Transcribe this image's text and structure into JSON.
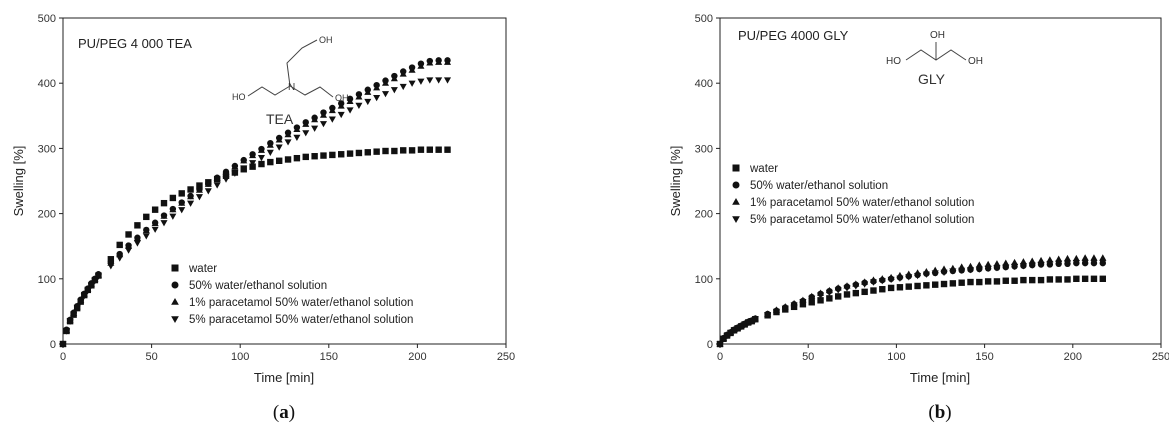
{
  "chart_data": [
    {
      "type": "scatter",
      "title": "PU/PEG 4 000 TEA",
      "caption": "(a)",
      "caption_letter": "a",
      "molecule_label": "TEA",
      "molecule_atoms": [
        "OH",
        "HO",
        "N",
        "OH"
      ],
      "xlabel": "Time [min]",
      "ylabel": "Swelling [%]",
      "xlim": [
        0,
        250
      ],
      "ylim": [
        0,
        500
      ],
      "xticks": [
        "0",
        "50",
        "100",
        "150",
        "200",
        "250"
      ],
      "yticks": [
        "0",
        "100",
        "200",
        "300",
        "400",
        "500"
      ],
      "legend_position": "bottom-center",
      "legend": [
        "water",
        "50% water/ethanol solution",
        "1% paracetamol 50% water/ethanol solution",
        "5% paracetamol 50% water/ethanol solution"
      ],
      "series": [
        {
          "name": "water",
          "marker": "square",
          "x": [
            0,
            2,
            4,
            6,
            8,
            10,
            12,
            14,
            16,
            18,
            20,
            27,
            32,
            37,
            42,
            47,
            52,
            57,
            62,
            67,
            72,
            77,
            82,
            87,
            92,
            97,
            102,
            107,
            112,
            117,
            122,
            127,
            132,
            137,
            142,
            147,
            152,
            157,
            162,
            167,
            172,
            177,
            182,
            187,
            192,
            197,
            202,
            207,
            212,
            217
          ],
          "y": [
            0,
            20,
            35,
            45,
            55,
            65,
            75,
            83,
            90,
            98,
            105,
            130,
            152,
            168,
            182,
            195,
            206,
            216,
            224,
            231,
            237,
            243,
            248,
            253,
            258,
            263,
            268,
            272,
            276,
            279,
            281,
            283,
            285,
            287,
            288,
            289,
            290,
            291,
            292,
            293,
            294,
            295,
            296,
            296,
            297,
            297,
            298,
            298,
            298,
            298
          ]
        },
        {
          "name": "50% water/ethanol solution",
          "marker": "circle",
          "x": [
            0,
            2,
            4,
            6,
            8,
            10,
            12,
            14,
            16,
            18,
            20,
            27,
            32,
            37,
            42,
            47,
            52,
            57,
            62,
            67,
            72,
            77,
            82,
            87,
            92,
            97,
            102,
            107,
            112,
            117,
            122,
            127,
            132,
            137,
            142,
            147,
            152,
            157,
            162,
            167,
            172,
            177,
            182,
            187,
            192,
            197,
            202,
            207,
            212,
            217
          ],
          "y": [
            0,
            22,
            37,
            48,
            58,
            68,
            77,
            85,
            93,
            100,
            107,
            125,
            138,
            151,
            163,
            175,
            186,
            197,
            207,
            217,
            227,
            237,
            246,
            255,
            264,
            273,
            282,
            291,
            299,
            308,
            316,
            324,
            332,
            340,
            347,
            355,
            362,
            369,
            376,
            383,
            390,
            397,
            404,
            411,
            418,
            424,
            430,
            434,
            435,
            435
          ]
        },
        {
          "name": "1% paracetamol 50% water/ethanol solution",
          "marker": "triangle-up",
          "x": [
            0,
            2,
            4,
            6,
            8,
            10,
            12,
            14,
            16,
            18,
            20,
            27,
            32,
            37,
            42,
            47,
            52,
            57,
            62,
            67,
            72,
            77,
            82,
            87,
            92,
            97,
            102,
            107,
            112,
            117,
            122,
            127,
            132,
            137,
            142,
            147,
            152,
            157,
            162,
            167,
            172,
            177,
            182,
            187,
            192,
            197,
            202,
            207,
            212,
            217
          ],
          "y": [
            0,
            21,
            36,
            47,
            57,
            67,
            76,
            84,
            92,
            99,
            106,
            124,
            137,
            150,
            162,
            174,
            185,
            196,
            206,
            216,
            226,
            236,
            245,
            254,
            263,
            272,
            281,
            289,
            297,
            305,
            313,
            321,
            329,
            337,
            344,
            351,
            358,
            365,
            372,
            379,
            386,
            393,
            400,
            407,
            414,
            420,
            426,
            431,
            432,
            432
          ]
        },
        {
          "name": "5% paracetamol 50% water/ethanol solution",
          "marker": "triangle-down",
          "x": [
            0,
            2,
            4,
            6,
            8,
            10,
            12,
            14,
            16,
            18,
            20,
            27,
            32,
            37,
            42,
            47,
            52,
            57,
            62,
            67,
            72,
            77,
            82,
            87,
            92,
            97,
            102,
            107,
            112,
            117,
            122,
            127,
            132,
            137,
            142,
            147,
            152,
            157,
            162,
            167,
            172,
            177,
            182,
            187,
            192,
            197,
            202,
            207,
            212,
            217
          ],
          "y": [
            0,
            20,
            35,
            46,
            56,
            65,
            74,
            82,
            90,
            97,
            104,
            120,
            132,
            144,
            155,
            166,
            176,
            186,
            196,
            206,
            216,
            226,
            235,
            244,
            253,
            262,
            270,
            278,
            286,
            294,
            302,
            310,
            317,
            324,
            331,
            338,
            345,
            352,
            359,
            366,
            372,
            378,
            384,
            390,
            395,
            400,
            403,
            405,
            405,
            405
          ]
        }
      ]
    },
    {
      "type": "scatter",
      "title": "PU/PEG 4000 GLY",
      "caption": "(b)",
      "caption_letter": "b",
      "molecule_label": "GLY",
      "molecule_atoms": [
        "OH",
        "HO",
        "OH"
      ],
      "xlabel": "Time [min]",
      "ylabel": "Swelling [%]",
      "xlim": [
        0,
        250
      ],
      "ylim": [
        0,
        500
      ],
      "xticks": [
        "0",
        "50",
        "100",
        "150",
        "200",
        "250"
      ],
      "yticks": [
        "0",
        "100",
        "200",
        "300",
        "400",
        "500"
      ],
      "legend_position": "left-middle",
      "legend": [
        "water",
        "50% water/ethanol solution",
        "1% paracetamol 50% water/ethanol solution",
        "5% paracetamol 50% water/ethanol solution"
      ],
      "series": [
        {
          "name": "water",
          "marker": "square",
          "x": [
            0,
            2,
            4,
            6,
            8,
            10,
            12,
            14,
            16,
            18,
            20,
            27,
            32,
            37,
            42,
            47,
            52,
            57,
            62,
            67,
            72,
            77,
            82,
            87,
            92,
            97,
            102,
            107,
            112,
            117,
            122,
            127,
            132,
            137,
            142,
            147,
            152,
            157,
            162,
            167,
            172,
            177,
            182,
            187,
            192,
            197,
            202,
            207,
            212,
            217
          ],
          "y": [
            0,
            8,
            13,
            17,
            21,
            24,
            27,
            30,
            33,
            35,
            38,
            44,
            49,
            53,
            57,
            61,
            64,
            67,
            70,
            73,
            76,
            78,
            80,
            82,
            84,
            86,
            87,
            88,
            89,
            90,
            91,
            92,
            93,
            94,
            95,
            95,
            96,
            96,
            97,
            97,
            98,
            98,
            98,
            99,
            99,
            99,
            100,
            100,
            100,
            100
          ]
        },
        {
          "name": "50% water/ethanol solution",
          "marker": "circle",
          "x": [
            0,
            2,
            4,
            6,
            8,
            10,
            12,
            14,
            16,
            18,
            20,
            27,
            32,
            37,
            42,
            47,
            52,
            57,
            62,
            67,
            72,
            77,
            82,
            87,
            92,
            97,
            102,
            107,
            112,
            117,
            122,
            127,
            132,
            137,
            142,
            147,
            152,
            157,
            162,
            167,
            172,
            177,
            182,
            187,
            192,
            197,
            202,
            207,
            212,
            217
          ],
          "y": [
            0,
            9,
            14,
            18,
            22,
            25,
            28,
            31,
            34,
            36,
            39,
            46,
            51,
            56,
            61,
            66,
            72,
            77,
            81,
            85,
            88,
            91,
            94,
            96,
            98,
            100,
            102,
            104,
            106,
            108,
            109,
            111,
            112,
            113,
            114,
            115,
            116,
            117,
            118,
            119,
            120,
            121,
            122,
            122,
            123,
            123,
            124,
            124,
            124,
            124
          ]
        },
        {
          "name": "1% paracetamol 50% water/ethanol solution",
          "marker": "triangle-up",
          "x": [
            0,
            2,
            4,
            6,
            8,
            10,
            12,
            14,
            16,
            18,
            20,
            27,
            32,
            37,
            42,
            47,
            52,
            57,
            62,
            67,
            72,
            77,
            82,
            87,
            92,
            97,
            102,
            107,
            112,
            117,
            122,
            127,
            132,
            137,
            142,
            147,
            152,
            157,
            162,
            167,
            172,
            177,
            182,
            187,
            192,
            197,
            202,
            207,
            212,
            217
          ],
          "y": [
            0,
            9,
            14,
            18,
            22,
            25,
            28,
            31,
            34,
            36,
            39,
            46,
            52,
            57,
            62,
            67,
            73,
            78,
            82,
            86,
            89,
            92,
            95,
            98,
            100,
            102,
            105,
            107,
            109,
            111,
            113,
            115,
            116,
            118,
            119,
            121,
            122,
            123,
            124,
            125,
            126,
            127,
            128,
            129,
            130,
            131,
            131,
            132,
            132,
            132
          ]
        },
        {
          "name": "5% paracetamol 50% water/ethanol solution",
          "marker": "triangle-down",
          "x": [
            0,
            2,
            4,
            6,
            8,
            10,
            12,
            14,
            16,
            18,
            20,
            27,
            32,
            37,
            42,
            47,
            52,
            57,
            62,
            67,
            72,
            77,
            82,
            87,
            92,
            97,
            102,
            107,
            112,
            117,
            122,
            127,
            132,
            137,
            142,
            147,
            152,
            157,
            162,
            167,
            172,
            177,
            182,
            187,
            192,
            197,
            202,
            207,
            212,
            217
          ],
          "y": [
            0,
            8,
            13,
            17,
            21,
            24,
            27,
            30,
            33,
            35,
            38,
            45,
            50,
            55,
            60,
            65,
            70,
            75,
            79,
            83,
            86,
            89,
            92,
            95,
            97,
            99,
            101,
            103,
            105,
            107,
            109,
            110,
            112,
            113,
            114,
            115,
            116,
            117,
            118,
            119,
            120,
            121,
            122,
            123,
            124,
            124,
            125,
            125,
            125,
            125
          ]
        }
      ]
    }
  ]
}
